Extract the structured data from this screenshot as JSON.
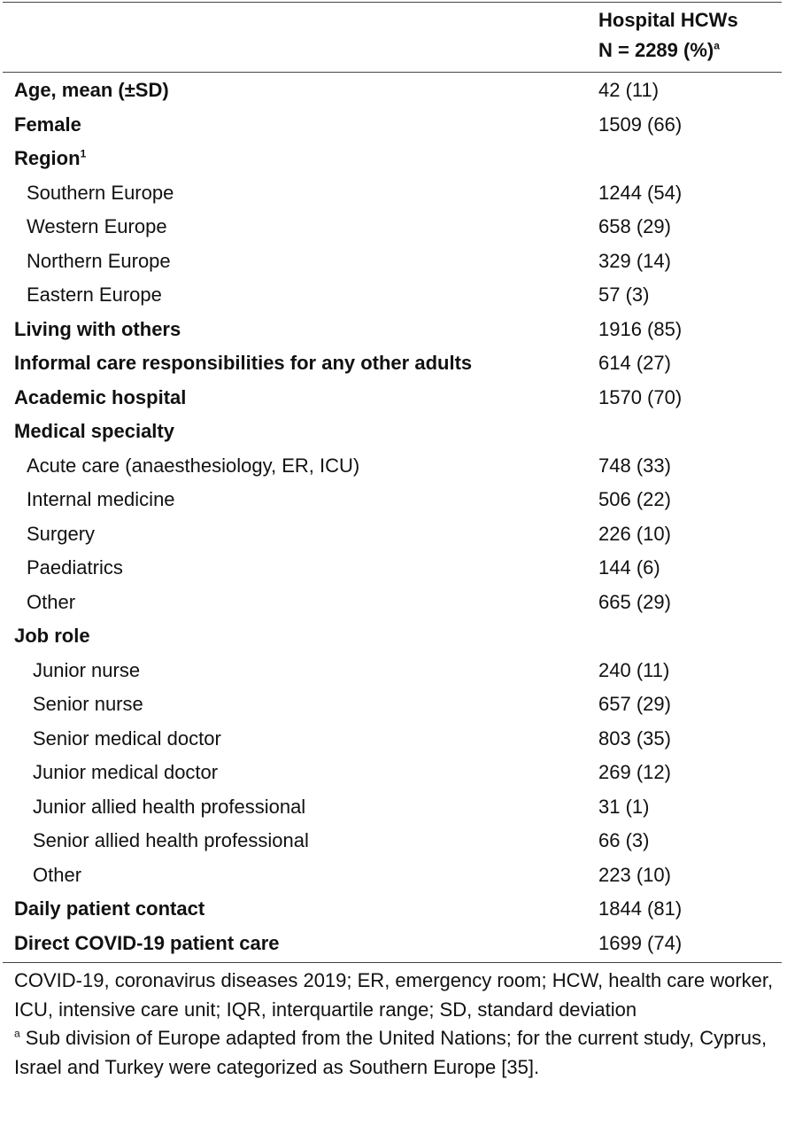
{
  "table": {
    "header": {
      "line1": "Hospital HCWs",
      "line2": "N = 2289 (%)",
      "line2_sup": "a"
    },
    "rows": [
      {
        "label": "Age, mean (±SD)",
        "value": "42 (11)",
        "style": "bold",
        "indent": 0
      },
      {
        "label": "Female",
        "value": "1509 (66)",
        "style": "bold",
        "indent": 0
      },
      {
        "label": "Region",
        "sup": "1",
        "value": "",
        "style": "bold",
        "indent": 0
      },
      {
        "label": "Southern Europe",
        "value": "1244 (54)",
        "style": "normal",
        "indent": 1
      },
      {
        "label": "Western Europe",
        "value": "658 (29)",
        "style": "normal",
        "indent": 1
      },
      {
        "label": "Northern Europe",
        "value": "329 (14)",
        "style": "normal",
        "indent": 1
      },
      {
        "label": "Eastern Europe",
        "value": "57 (3)",
        "style": "normal",
        "indent": 1
      },
      {
        "label": "Living with others",
        "value": "1916 (85)",
        "style": "bold",
        "indent": 0
      },
      {
        "label": "Informal care responsibilities for any other adults",
        "value": "614 (27)",
        "style": "bold",
        "indent": 0
      },
      {
        "label": "Academic hospital",
        "value": "1570 (70)",
        "style": "bold",
        "indent": 0
      },
      {
        "label": "Medical specialty",
        "value": "",
        "style": "bold",
        "indent": 0
      },
      {
        "label": "Acute care (anaesthesiology, ER, ICU)",
        "value": "748 (33)",
        "style": "normal",
        "indent": 1
      },
      {
        "label": "Internal medicine",
        "value": "506 (22)",
        "style": "normal",
        "indent": 1
      },
      {
        "label": "Surgery",
        "value": "226 (10)",
        "style": "normal",
        "indent": 1
      },
      {
        "label": "Paediatrics",
        "value": "144 (6)",
        "style": "normal",
        "indent": 1
      },
      {
        "label": "Other",
        "value": "665 (29)",
        "style": "normal",
        "indent": 1
      },
      {
        "label": "Job role",
        "value": "",
        "style": "bold",
        "indent": 0
      },
      {
        "label": "Junior nurse",
        "value": "240 (11)",
        "style": "normal",
        "indent": 2
      },
      {
        "label": "Senior nurse",
        "value": "657 (29)",
        "style": "normal",
        "indent": 2
      },
      {
        "label": "Senior medical doctor",
        "value": "803 (35)",
        "style": "normal",
        "indent": 2
      },
      {
        "label": "Junior medical doctor",
        "value": "269 (12)",
        "style": "normal",
        "indent": 2
      },
      {
        "label": "Junior allied health professional",
        "value": "31 (1)",
        "style": "normal",
        "indent": 2
      },
      {
        "label": "Senior allied health professional",
        "value": "66 (3)",
        "style": "normal",
        "indent": 2
      },
      {
        "label": "Other",
        "value": "223 (10)",
        "style": "normal",
        "indent": 2
      },
      {
        "label": "Daily patient contact",
        "value": "1844 (81)",
        "style": "bold",
        "indent": 0
      },
      {
        "label": "Direct COVID-19 patient care",
        "value": "1699 (74)",
        "style": "bold",
        "indent": 0
      }
    ]
  },
  "footnotes": {
    "abbreviations": "COVID-19, coronavirus diseases 2019; ER, emergency room; HCW, health care worker, ICU, intensive care unit; IQR, interquartile range; SD, standard deviation",
    "note_a_marker": "a",
    "note_a_text": " Sub division of Europe adapted from the United Nations; for the current study, Cyprus, Israel and Turkey were categorized as Southern Europe [35]."
  }
}
